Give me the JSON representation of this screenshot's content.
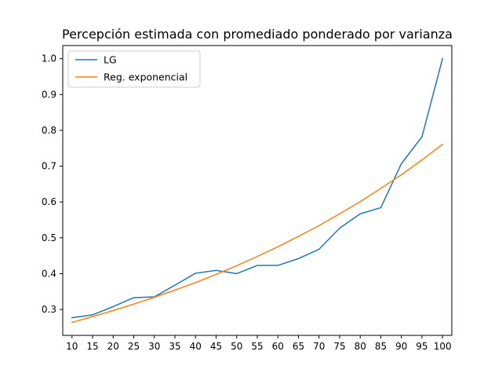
{
  "chart_data": {
    "type": "line",
    "title": "Percepción estimada con promediado ponderado por varianza",
    "xlabel": "",
    "ylabel": "",
    "x": [
      10,
      15,
      20,
      25,
      30,
      35,
      40,
      45,
      50,
      55,
      60,
      65,
      70,
      75,
      80,
      85,
      90,
      95,
      100
    ],
    "x_ticks": [
      "10",
      "15",
      "20",
      "25",
      "30",
      "35",
      "40",
      "45",
      "50",
      "55",
      "60",
      "65",
      "70",
      "75",
      "80",
      "85",
      "90",
      "95",
      "100"
    ],
    "y_ticks": [
      "0.3",
      "0.4",
      "0.5",
      "0.6",
      "0.7",
      "0.8",
      "0.9",
      "1.0"
    ],
    "xlim": [
      7.75,
      102.25
    ],
    "ylim": [
      0.2277,
      1.0366
    ],
    "grid": false,
    "legend_position": "top-left",
    "series": [
      {
        "name": "LG",
        "color": "#1f77b4",
        "values": [
          0.277,
          0.285,
          0.308,
          0.333,
          0.335,
          0.368,
          0.401,
          0.409,
          0.4,
          0.423,
          0.423,
          0.442,
          0.468,
          0.527,
          0.567,
          0.584,
          0.707,
          0.782,
          1.0
        ]
      },
      {
        "name": "Reg. exponencial",
        "color": "#ff7f0e",
        "values": [
          0.264,
          0.28,
          0.297,
          0.315,
          0.334,
          0.354,
          0.375,
          0.398,
          0.422,
          0.448,
          0.475,
          0.504,
          0.534,
          0.567,
          0.601,
          0.638,
          0.676,
          0.717,
          0.761
        ]
      }
    ]
  }
}
